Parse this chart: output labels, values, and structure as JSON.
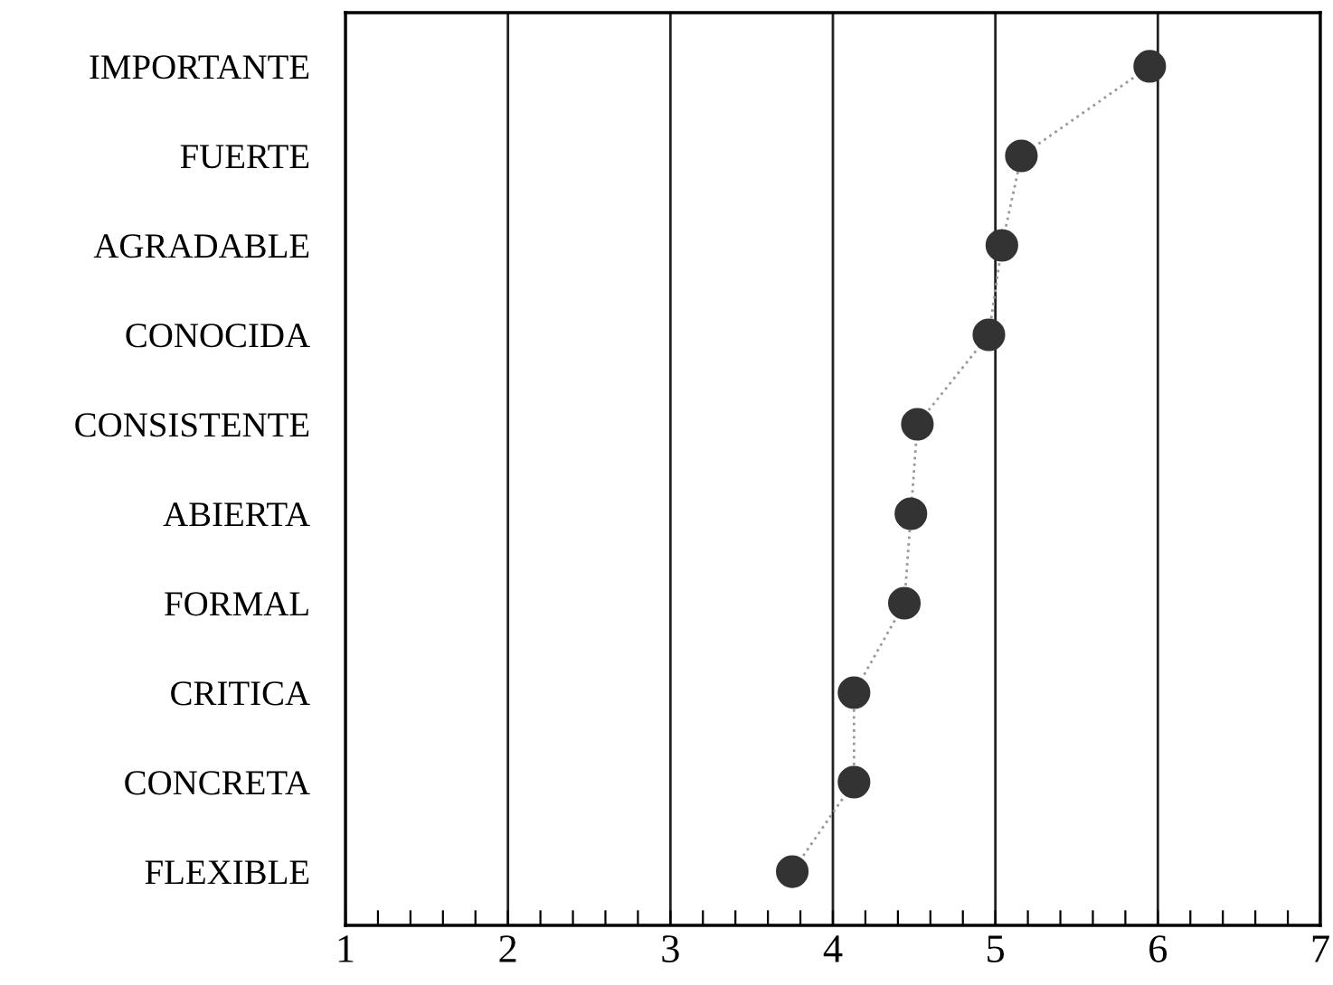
{
  "chart_data": {
    "type": "line",
    "orientation": "horizontal",
    "categories": [
      "IMPORTANTE",
      "FUERTE",
      "AGRADABLE",
      "CONOCIDA",
      "CONSISTENTE",
      "ABIERTA",
      "FORMAL",
      "CRITICA",
      "CONCRETA",
      "FLEXIBLE"
    ],
    "series": [
      {
        "color": "#333333",
        "values": [
          5.95,
          5.16,
          5.04,
          4.96,
          4.52,
          4.48,
          4.44,
          4.13,
          4.13,
          3.75
        ]
      }
    ],
    "marker": "circle",
    "line_style": "dotted",
    "grid": "x",
    "xlim": [
      1,
      7
    ],
    "xticks": [
      1,
      {
        "value": 1.2,
        "label": null
      },
      {
        "value": 1.4,
        "label": null
      },
      {
        "value": 1.6,
        "label": null
      },
      {
        "value": 1.8,
        "label": null
      },
      2,
      {
        "value": 2.2,
        "label": null
      },
      {
        "value": 2.4,
        "label": null
      },
      {
        "value": 2.6,
        "label": null
      },
      {
        "value": 2.8,
        "label": null
      },
      3,
      {
        "value": 3.2,
        "label": null
      },
      {
        "value": 3.4,
        "label": null
      },
      {
        "value": 3.6,
        "label": null
      },
      {
        "value": 3.8,
        "label": null
      },
      4,
      {
        "value": 4.2,
        "label": null
      },
      {
        "value": 4.4,
        "label": null
      },
      {
        "value": 4.6,
        "label": null
      },
      {
        "value": 4.8,
        "label": null
      },
      5,
      {
        "value": 5.2,
        "label": null
      },
      {
        "value": 5.4,
        "label": null
      },
      {
        "value": 5.6,
        "label": null
      },
      {
        "value": 5.8,
        "label": null
      },
      6,
      {
        "value": 6.2,
        "label": null
      },
      {
        "value": 6.4,
        "label": null
      },
      {
        "value": 6.6,
        "label": null
      },
      {
        "value": 6.8,
        "label": null
      },
      7
    ]
  }
}
